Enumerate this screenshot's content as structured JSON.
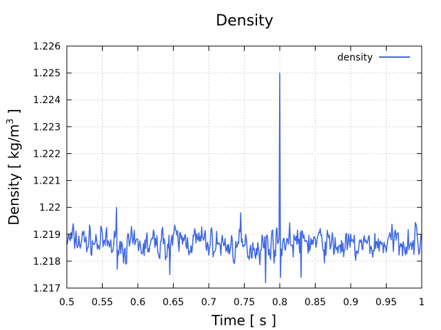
{
  "chart_data": {
    "type": "line",
    "title": "Density",
    "xlabel": "Time [ s ]",
    "ylabel_prefix": "Density [ kg/m",
    "ylabel_sup": "3",
    "ylabel_suffix": " ]",
    "xlim": [
      0.5,
      1.0
    ],
    "ylim": [
      1.217,
      1.226
    ],
    "xticks": [
      0.5,
      0.55,
      0.6,
      0.65,
      0.7,
      0.75,
      0.8,
      0.85,
      0.9,
      0.95,
      1.0
    ],
    "xtick_labels": [
      "0.5",
      "0.55",
      "0.6",
      "0.65",
      "0.7",
      "0.75",
      "0.8",
      "0.85",
      "0.9",
      "0.95",
      "1"
    ],
    "yticks": [
      1.217,
      1.218,
      1.219,
      1.22,
      1.221,
      1.222,
      1.223,
      1.224,
      1.225,
      1.226
    ],
    "ytick_labels": [
      "1.217",
      "1.218",
      "1.219",
      "1.22",
      "1.221",
      "1.222",
      "1.223",
      "1.224",
      "1.225",
      "1.226"
    ],
    "grid": true,
    "legend_position": "top-right",
    "series": [
      {
        "name": "density",
        "color": "#4169e1",
        "noise": {
          "step": 0.001,
          "mean": 1.21865,
          "amplitude": 0.00072,
          "seed": 7
        },
        "spike": {
          "x": 0.8,
          "y": 1.225,
          "low": 1.2174
        },
        "notable_minima": [
          {
            "x": 0.645,
            "y": 1.2175
          },
          {
            "x": 0.78,
            "y": 1.2172
          },
          {
            "x": 0.83,
            "y": 1.2174
          }
        ],
        "notable_maxima": [
          {
            "x": 0.57,
            "y": 1.22
          },
          {
            "x": 0.745,
            "y": 1.2198
          }
        ]
      }
    ]
  }
}
